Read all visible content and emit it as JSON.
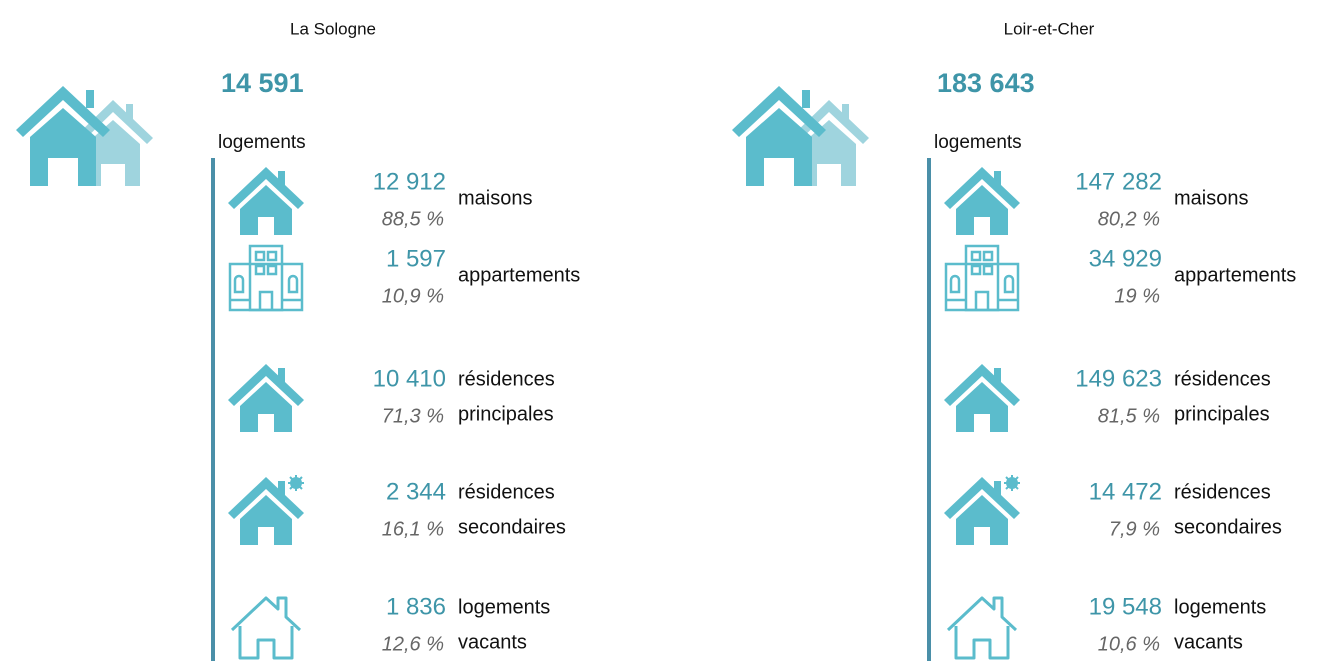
{
  "panels": [
    {
      "title": "La Sologne",
      "total": "14 591",
      "unit": "logements",
      "items": [
        {
          "value": "12 912",
          "percent": "88,5 %",
          "label": [
            "maisons"
          ]
        },
        {
          "value": "1 597",
          "percent": "10,9 %",
          "label": [
            "appartements"
          ]
        },
        {
          "value": "10 410",
          "percent": "71,3 %",
          "label": [
            "résidences",
            "principales"
          ]
        },
        {
          "value": "2 344",
          "percent": "16,1 %",
          "label": [
            "résidences",
            "secondaires"
          ]
        },
        {
          "value": "1 836",
          "percent": "12,6 %",
          "label": [
            "logements",
            "vacants"
          ]
        }
      ]
    },
    {
      "title": "Loir-et-Cher",
      "total": "183 643",
      "unit": "logements",
      "items": [
        {
          "value": "147 282",
          "percent": "80,2 %",
          "label": [
            "maisons"
          ]
        },
        {
          "value": "34 929",
          "percent": "19 %",
          "label": [
            "appartements"
          ]
        },
        {
          "value": "149 623",
          "percent": "81,5 %",
          "label": [
            "résidences",
            "principales"
          ]
        },
        {
          "value": "14 472",
          "percent": "7,9 %",
          "label": [
            "résidences",
            "secondaires"
          ]
        },
        {
          "value": "19 548",
          "percent": "10,6 %",
          "label": [
            "logements",
            "vacants"
          ]
        }
      ]
    }
  ]
}
